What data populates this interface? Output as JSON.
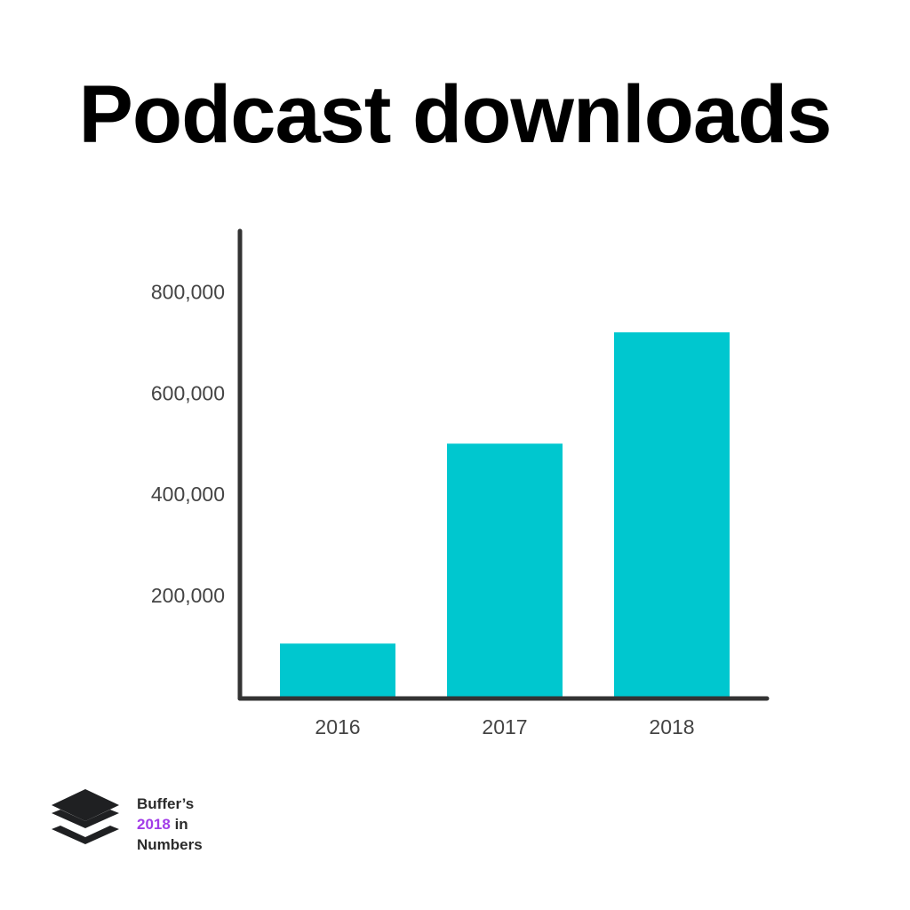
{
  "colors": {
    "bar": "#00c7cf",
    "axis": "#333333",
    "tick_text": "#444444",
    "brand_accent": "#a23ce8"
  },
  "branding": {
    "logo_icon": "buffer-stack-icon",
    "line1": "Buffer’s",
    "year": "2018",
    "in_word": "in",
    "line3": "Numbers"
  },
  "chart_data": {
    "type": "bar",
    "title": "Podcast downloads",
    "categories": [
      "2016",
      "2017",
      "2018"
    ],
    "values": [
      105000,
      500000,
      720000
    ],
    "yticks": [
      200000,
      400000,
      600000,
      800000
    ],
    "ytick_labels": [
      "200,000",
      "400,000",
      "600,000",
      "800,000"
    ],
    "ylim": [
      0,
      920000
    ],
    "grid": false,
    "legend": "none"
  }
}
